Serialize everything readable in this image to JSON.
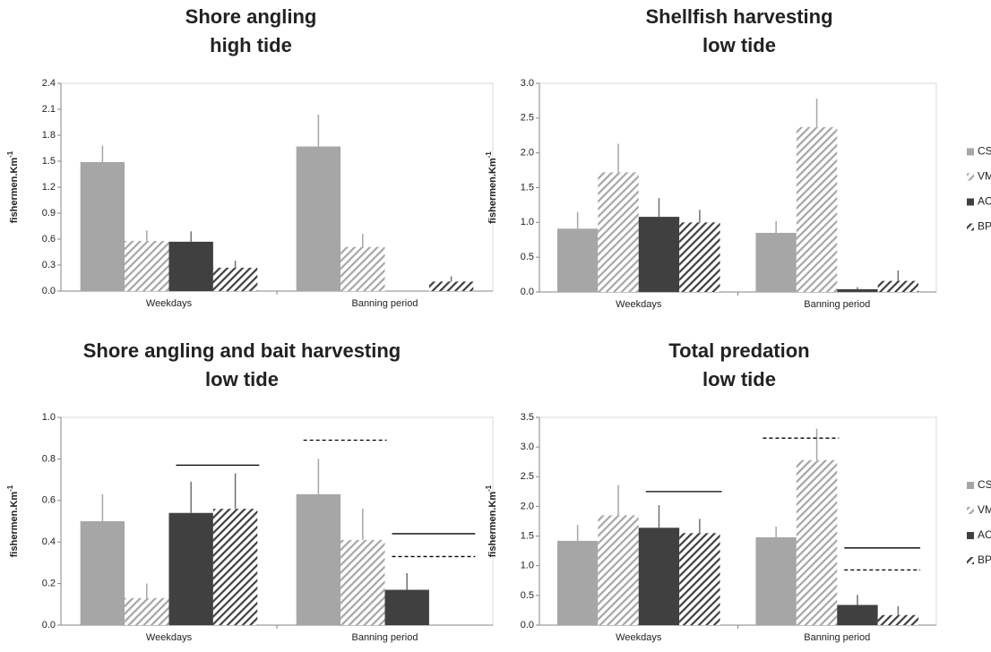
{
  "chart_data": [
    {
      "type": "bar",
      "title": [
        "Shore angling",
        "high tide"
      ],
      "ylabel": "fishermen.Km",
      "ylabel_sup": "-1",
      "categories": [
        "Weekdays",
        "Banning period"
      ],
      "ylim": [
        0,
        2.4
      ],
      "yticks": [
        {
          "value": 0,
          "label": "0.0"
        },
        0.3,
        0.6,
        0.9,
        1.2,
        1.5,
        1.8,
        2.1,
        2.4
      ],
      "series": [
        {
          "name": "CSI",
          "color": "#a6a6a6",
          "hatch": false,
          "values": [
            1.49,
            1.67
          ],
          "errors": [
            0.19,
            0.37
          ]
        },
        {
          "name": "VMA",
          "color": "#a6a6a6",
          "hatch": true,
          "values": [
            0.58,
            0.51
          ],
          "errors": [
            0.12,
            0.15
          ]
        },
        {
          "name": "ACO",
          "color": "#404040",
          "hatch": false,
          "values": [
            0.57,
            0
          ],
          "errors": [
            0.12,
            null
          ]
        },
        {
          "name": "BPC",
          "color": "#404040",
          "hatch": true,
          "values": [
            0.27,
            0.11
          ],
          "errors": [
            0.08,
            0.06
          ]
        }
      ]
    },
    {
      "type": "bar",
      "title": [
        "Shellfish harvesting",
        "low tide"
      ],
      "ylabel": "fishermen.Km",
      "ylabel_sup": "-1",
      "categories": [
        "Weekdays",
        "Banning period"
      ],
      "legend": "right",
      "ylim": [
        0,
        3
      ],
      "yticks": [
        {
          "value": 0,
          "label": "0.0"
        },
        0.5,
        {
          "value": 1,
          "label": "1.0"
        },
        1.5,
        {
          "value": 2,
          "label": "2.0"
        },
        2.5,
        {
          "value": 3,
          "label": "3.0"
        }
      ],
      "series": [
        {
          "name": "CSI",
          "color": "#a6a6a6",
          "hatch": false,
          "values": [
            0.91,
            0.85
          ],
          "errors": [
            0.24,
            0.17
          ]
        },
        {
          "name": "VMA",
          "color": "#a6a6a6",
          "hatch": true,
          "values": [
            1.72,
            2.37
          ],
          "errors": [
            0.41,
            0.41
          ]
        },
        {
          "name": "ACO",
          "color": "#404040",
          "hatch": false,
          "values": [
            1.08,
            0.04
          ],
          "errors": [
            0.27,
            0.03
          ]
        },
        {
          "name": "BPC",
          "color": "#404040",
          "hatch": true,
          "values": [
            1.0,
            0.16
          ],
          "errors": [
            0.18,
            0.15
          ]
        }
      ]
    },
    {
      "type": "bar",
      "title": [
        "Shore angling and bait harvesting",
        "low tide"
      ],
      "ylabel": "fishermen.Km",
      "ylabel_sup": "-1",
      "categories": [
        "Weekdays",
        "Banning period"
      ],
      "ylim": [
        0,
        1
      ],
      "yticks": [
        {
          "value": 0,
          "label": "0.0"
        },
        0.2,
        0.4,
        0.6,
        0.8,
        {
          "value": 1,
          "label": "1.0"
        }
      ],
      "series": [
        {
          "name": "CSI",
          "color": "#a6a6a6",
          "hatch": false,
          "values": [
            0.5,
            0.63
          ],
          "errors": [
            0.13,
            0.17
          ]
        },
        {
          "name": "VMA",
          "color": "#a6a6a6",
          "hatch": true,
          "values": [
            0.13,
            0.41
          ],
          "errors": [
            0.07,
            0.15
          ]
        },
        {
          "name": "ACO",
          "color": "#404040",
          "hatch": false,
          "values": [
            0.54,
            0.17
          ],
          "errors": [
            0.15,
            0.08
          ]
        },
        {
          "name": "BPC",
          "color": "#404040",
          "hatch": true,
          "values": [
            0.56,
            0
          ],
          "errors": [
            0.17,
            null
          ]
        }
      ],
      "lines": [
        {
          "y": 0.77,
          "category": 0,
          "from": 2,
          "to": 3,
          "dashed": false
        },
        {
          "y": 0.89,
          "category": 1,
          "from": 0,
          "to": 1,
          "dashed": true
        },
        {
          "y": 0.44,
          "category": 1,
          "from": 2,
          "to": 3,
          "dashed": false
        },
        {
          "y": 0.33,
          "category": 1,
          "from": 2,
          "to": 3,
          "dashed": true
        }
      ]
    },
    {
      "type": "bar",
      "title": [
        "Total predation",
        "low tide"
      ],
      "ylabel": "fishermen.Km",
      "ylabel_sup": "-1",
      "categories": [
        "Weekdays",
        "Banning period"
      ],
      "legend": "right",
      "ylim": [
        0,
        3.5
      ],
      "yticks": [
        {
          "value": 0,
          "label": "0.0"
        },
        0.5,
        {
          "value": 1,
          "label": "1.0"
        },
        1.5,
        {
          "value": 2,
          "label": "2.0"
        },
        2.5,
        {
          "value": 3,
          "label": "3.0"
        },
        3.5
      ],
      "series": [
        {
          "name": "CSI",
          "color": "#a6a6a6",
          "hatch": false,
          "values": [
            1.42,
            1.48
          ],
          "errors": [
            0.27,
            0.18
          ]
        },
        {
          "name": "VMA",
          "color": "#a6a6a6",
          "hatch": true,
          "values": [
            1.85,
            2.78
          ],
          "errors": [
            0.51,
            0.53
          ]
        },
        {
          "name": "ACO",
          "color": "#404040",
          "hatch": false,
          "values": [
            1.64,
            0.34
          ],
          "errors": [
            0.38,
            0.17
          ]
        },
        {
          "name": "BPC",
          "color": "#404040",
          "hatch": true,
          "values": [
            1.55,
            0.17
          ],
          "errors": [
            0.24,
            0.15
          ]
        }
      ],
      "lines": [
        {
          "y": 2.25,
          "category": 0,
          "from": 2,
          "to": 3,
          "dashed": false
        },
        {
          "y": 3.15,
          "category": 1,
          "from": 0,
          "to": 1,
          "dashed": true
        },
        {
          "y": 1.3,
          "category": 1,
          "from": 2,
          "to": 3,
          "dashed": false
        },
        {
          "y": 0.93,
          "category": 1,
          "from": 2,
          "to": 3,
          "dashed": true
        }
      ]
    }
  ]
}
